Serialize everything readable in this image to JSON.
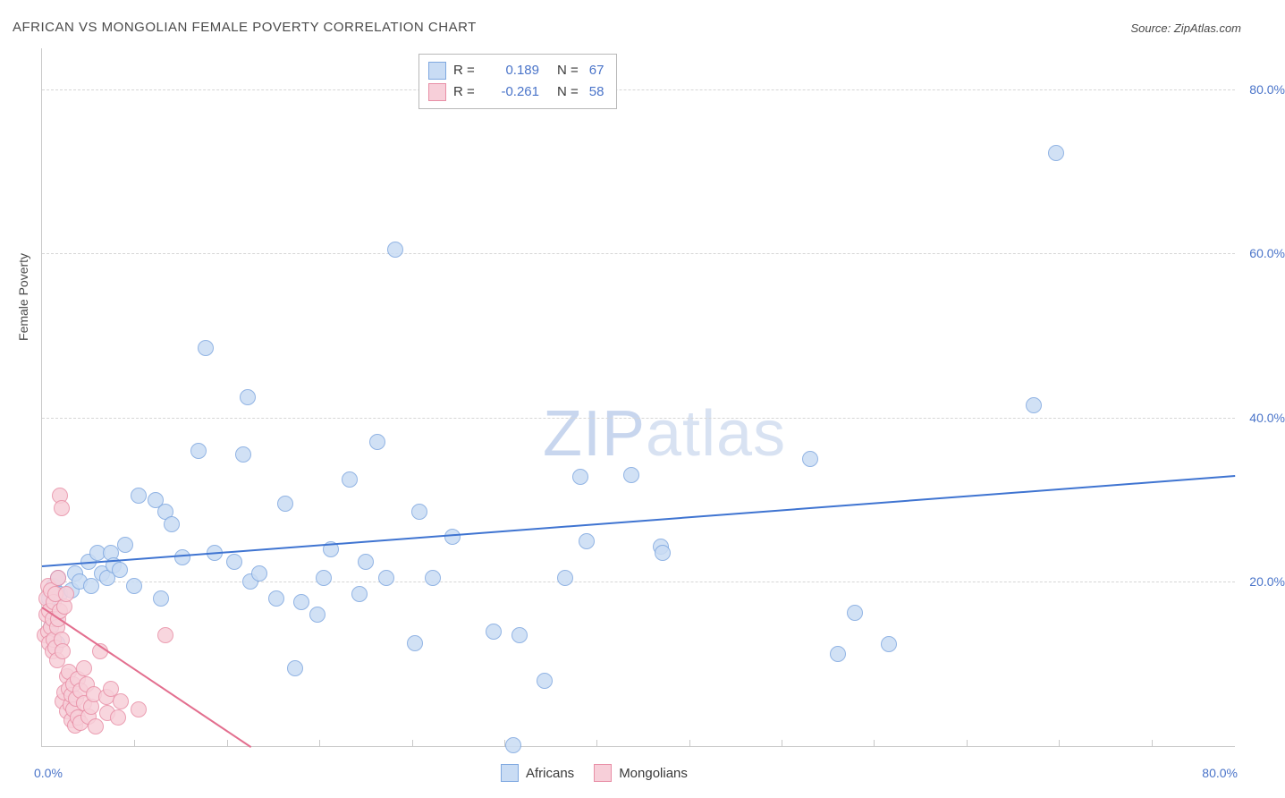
{
  "title": "AFRICAN VS MONGOLIAN FEMALE POVERTY CORRELATION CHART",
  "source": "Source: ZipAtlas.com",
  "y_axis_title": "Female Poverty",
  "watermark": {
    "part1": "ZIP",
    "part2": "atlas"
  },
  "chart": {
    "type": "scatter",
    "xlim": [
      0,
      80
    ],
    "ylim": [
      0,
      85
    ],
    "x_label_min": "0.0%",
    "x_label_max": "80.0%",
    "y_gridlines": [
      20,
      40,
      60,
      80
    ],
    "y_labels": [
      "20.0%",
      "40.0%",
      "60.0%",
      "80.0%"
    ],
    "x_tick_step": 6.2,
    "background_color": "#ffffff",
    "grid_color": "#d6d6d6",
    "axis_color": "#c9c9c9",
    "series": [
      {
        "name": "Africans",
        "marker_color_fill": "#c9dcf4",
        "marker_color_stroke": "#7fa8e0",
        "marker_radius": 8,
        "opacity": 0.85,
        "R": "0.189",
        "N": "67",
        "trend": {
          "x1": 0,
          "y1": 22,
          "x2": 80,
          "y2": 33,
          "color": "#3f74d1",
          "width": 2
        },
        "points": [
          [
            0.5,
            18
          ],
          [
            0.6,
            14.5
          ],
          [
            0.8,
            19.5
          ],
          [
            0.9,
            15.5
          ],
          [
            1.1,
            20.5
          ],
          [
            1.0,
            12.5
          ],
          [
            1.2,
            18.5
          ],
          [
            2.0,
            19
          ],
          [
            2.2,
            21
          ],
          [
            2.5,
            20
          ],
          [
            3.1,
            22.5
          ],
          [
            3.3,
            19.5
          ],
          [
            3.7,
            23.5
          ],
          [
            4.0,
            21
          ],
          [
            4.4,
            20.5
          ],
          [
            4.6,
            23.5
          ],
          [
            4.8,
            22
          ],
          [
            5.2,
            21.5
          ],
          [
            5.6,
            24.5
          ],
          [
            6.2,
            19.5
          ],
          [
            6.5,
            30.5
          ],
          [
            7.6,
            30
          ],
          [
            8.0,
            18
          ],
          [
            8.3,
            28.5
          ],
          [
            8.7,
            27
          ],
          [
            9.4,
            23
          ],
          [
            10.5,
            36
          ],
          [
            11.0,
            48.5
          ],
          [
            11.6,
            23.5
          ],
          [
            12.9,
            22.5
          ],
          [
            13.5,
            35.5
          ],
          [
            14.0,
            20
          ],
          [
            13.8,
            42.5
          ],
          [
            14.6,
            21
          ],
          [
            15.7,
            18.0
          ],
          [
            16.3,
            29.5
          ],
          [
            17.0,
            9.5
          ],
          [
            17.4,
            17.5
          ],
          [
            18.5,
            16.0
          ],
          [
            18.9,
            20.5
          ],
          [
            19.4,
            24
          ],
          [
            20.6,
            32.5
          ],
          [
            21.3,
            18.5
          ],
          [
            21.7,
            22.5
          ],
          [
            22.5,
            37
          ],
          [
            23.1,
            20.5
          ],
          [
            23.7,
            60.5
          ],
          [
            25.0,
            12.5
          ],
          [
            25.3,
            28.5
          ],
          [
            26.2,
            20.5
          ],
          [
            27.5,
            25.5
          ],
          [
            30.3,
            14
          ],
          [
            31.6,
            0.1
          ],
          [
            32.0,
            13.5
          ],
          [
            33.7,
            8
          ],
          [
            35.1,
            20.5
          ],
          [
            36.1,
            32.8
          ],
          [
            36.5,
            25
          ],
          [
            39.5,
            33
          ],
          [
            41.5,
            24.3
          ],
          [
            41.6,
            23.5
          ],
          [
            51.5,
            35
          ],
          [
            53.4,
            11.2
          ],
          [
            54.5,
            16.2
          ],
          [
            56.8,
            12.4
          ],
          [
            66.5,
            41.5
          ],
          [
            68.0,
            72.3
          ]
        ]
      },
      {
        "name": "Mongolians",
        "marker_color_fill": "#f7cfd9",
        "marker_color_stroke": "#e88fa6",
        "marker_radius": 8,
        "opacity": 0.85,
        "R": "-0.261",
        "N": "58",
        "trend": {
          "x1": 0,
          "y1": 17,
          "x2": 14,
          "y2": 0,
          "color": "#e36f8f",
          "width": 2
        },
        "points": [
          [
            0.2,
            13.5
          ],
          [
            0.3,
            16
          ],
          [
            0.3,
            18
          ],
          [
            0.4,
            19.5
          ],
          [
            0.4,
            14
          ],
          [
            0.5,
            12.5
          ],
          [
            0.5,
            16.5
          ],
          [
            0.6,
            14.5
          ],
          [
            0.6,
            19
          ],
          [
            0.7,
            15.5
          ],
          [
            0.7,
            11.5
          ],
          [
            0.8,
            13
          ],
          [
            0.8,
            17.5
          ],
          [
            0.9,
            12
          ],
          [
            0.9,
            18.5
          ],
          [
            1.0,
            10.5
          ],
          [
            1.0,
            14.5
          ],
          [
            1.1,
            15.5
          ],
          [
            1.1,
            20.5
          ],
          [
            1.2,
            16.5
          ],
          [
            1.2,
            30.5
          ],
          [
            1.3,
            29
          ],
          [
            1.3,
            13
          ],
          [
            1.4,
            11.5
          ],
          [
            1.4,
            5.5
          ],
          [
            1.5,
            17
          ],
          [
            1.5,
            6.5
          ],
          [
            1.6,
            18.5
          ],
          [
            1.7,
            8.5
          ],
          [
            1.7,
            4.2
          ],
          [
            1.8,
            7
          ],
          [
            1.8,
            9
          ],
          [
            1.9,
            5
          ],
          [
            2.0,
            3.2
          ],
          [
            2.0,
            6.2
          ],
          [
            2.1,
            4.5
          ],
          [
            2.1,
            7.5
          ],
          [
            2.2,
            2.5
          ],
          [
            2.3,
            5.8
          ],
          [
            2.4,
            8.2
          ],
          [
            2.4,
            3.5
          ],
          [
            2.6,
            6.8
          ],
          [
            2.6,
            2.8
          ],
          [
            2.8,
            5.2
          ],
          [
            2.8,
            9.5
          ],
          [
            3.0,
            7.5
          ],
          [
            3.1,
            3.6
          ],
          [
            3.3,
            4.8
          ],
          [
            3.5,
            6.3
          ],
          [
            3.6,
            2.4
          ],
          [
            3.9,
            11.5
          ],
          [
            4.3,
            6.0
          ],
          [
            4.4,
            4.0
          ],
          [
            4.6,
            7.0
          ],
          [
            5.1,
            3.5
          ],
          [
            5.3,
            5.5
          ],
          [
            6.5,
            4.5
          ],
          [
            8.3,
            13.5
          ]
        ]
      }
    ]
  },
  "legend_top": [
    {
      "swatch_fill": "#c9dcf4",
      "swatch_stroke": "#7fa8e0",
      "r_label": "R =",
      "r_val": "0.189",
      "n_label": "N =",
      "n_val": "67"
    },
    {
      "swatch_fill": "#f7cfd9",
      "swatch_stroke": "#e88fa6",
      "r_label": "R =",
      "r_val": "-0.261",
      "n_label": "N =",
      "n_val": "58"
    }
  ],
  "legend_bottom": [
    {
      "swatch_fill": "#c9dcf4",
      "swatch_stroke": "#7fa8e0",
      "label": "Africans"
    },
    {
      "swatch_fill": "#f7cfd9",
      "swatch_stroke": "#e88fa6",
      "label": "Mongolians"
    }
  ]
}
